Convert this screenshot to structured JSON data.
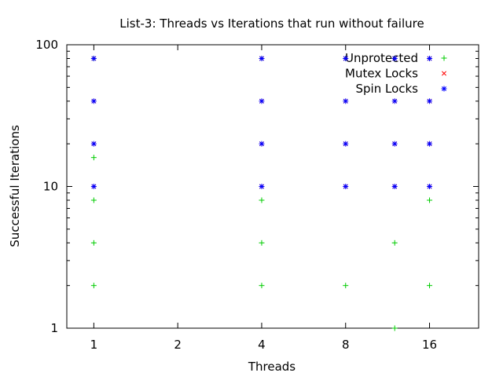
{
  "chart_data": {
    "type": "scatter",
    "title": "List-3: Threads vs Iterations that run without failure",
    "xlabel": "Threads",
    "ylabel": "Successful Iterations",
    "x_scale": "log2",
    "y_scale": "log10",
    "xlim": [
      0.8,
      24
    ],
    "ylim": [
      1,
      100
    ],
    "x_ticks": [
      1,
      2,
      4,
      8,
      16
    ],
    "x_tick_labels": [
      "1",
      "2",
      "4",
      "8",
      "16"
    ],
    "y_ticks": [
      1,
      10,
      100
    ],
    "y_tick_labels": [
      "1",
      "10",
      "100"
    ],
    "grid": false,
    "legend_position": "top-right",
    "series": [
      {
        "name": "Unprotected",
        "color": "#00cc00",
        "marker": "plus",
        "points": [
          [
            1,
            2
          ],
          [
            1,
            4
          ],
          [
            1,
            8
          ],
          [
            1,
            16
          ],
          [
            1,
            80
          ],
          [
            4,
            2
          ],
          [
            4,
            4
          ],
          [
            4,
            8
          ],
          [
            4,
            80
          ],
          [
            8,
            2
          ],
          [
            8,
            80
          ],
          [
            12,
            1
          ],
          [
            12,
            4
          ],
          [
            12,
            80
          ],
          [
            16,
            2
          ],
          [
            16,
            8
          ],
          [
            16,
            80
          ]
        ]
      },
      {
        "name": "Mutex Locks",
        "color": "#ff0000",
        "marker": "cross",
        "points": [
          [
            1,
            10
          ],
          [
            1,
            20
          ],
          [
            1,
            40
          ],
          [
            1,
            80
          ],
          [
            4,
            10
          ],
          [
            4,
            20
          ],
          [
            4,
            40
          ],
          [
            4,
            80
          ],
          [
            8,
            10
          ],
          [
            8,
            20
          ],
          [
            8,
            40
          ],
          [
            8,
            80
          ],
          [
            12,
            10
          ],
          [
            12,
            20
          ],
          [
            12,
            40
          ],
          [
            12,
            80
          ],
          [
            16,
            10
          ],
          [
            16,
            20
          ],
          [
            16,
            40
          ],
          [
            16,
            80
          ]
        ]
      },
      {
        "name": "Spin Locks",
        "color": "#0000ff",
        "marker": "star",
        "points": [
          [
            1,
            10
          ],
          [
            1,
            20
          ],
          [
            1,
            40
          ],
          [
            1,
            80
          ],
          [
            4,
            10
          ],
          [
            4,
            20
          ],
          [
            4,
            40
          ],
          [
            4,
            80
          ],
          [
            8,
            10
          ],
          [
            8,
            20
          ],
          [
            8,
            40
          ],
          [
            8,
            80
          ],
          [
            12,
            10
          ],
          [
            12,
            20
          ],
          [
            12,
            40
          ],
          [
            12,
            80
          ],
          [
            16,
            10
          ],
          [
            16,
            20
          ],
          [
            16,
            40
          ],
          [
            16,
            80
          ]
        ]
      }
    ]
  }
}
